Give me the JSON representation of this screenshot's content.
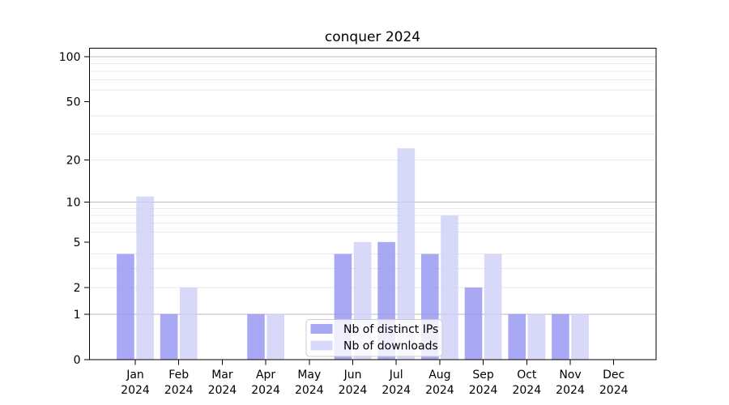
{
  "chart_data": {
    "type": "bar",
    "title": "conquer 2024",
    "categories": [
      "Jan 2024",
      "Feb 2024",
      "Mar 2024",
      "Apr 2024",
      "May 2024",
      "Jun 2024",
      "Jul 2024",
      "Aug 2024",
      "Sep 2024",
      "Oct 2024",
      "Nov 2024",
      "Dec 2024"
    ],
    "series": [
      {
        "name": "Nb of distinct IPs",
        "values": [
          4,
          1,
          0,
          1,
          0,
          4,
          5,
          4,
          2,
          1,
          1,
          0
        ],
        "color": "rgba(146,146,242,0.8)"
      },
      {
        "name": "Nb of downloads",
        "values": [
          11,
          2,
          0,
          1,
          0,
          5,
          24,
          8,
          4,
          1,
          1,
          0
        ],
        "color": "rgba(206,206,248,0.8)"
      }
    ],
    "yscale": "log1p",
    "ylim": [
      0,
      113
    ],
    "y_ticks": [
      0,
      1,
      2,
      5,
      10,
      20,
      50,
      100
    ],
    "y_major_gridlines": [
      1,
      10,
      100
    ],
    "y_minor_gridlines": [
      2,
      3,
      4,
      6,
      7,
      8,
      9,
      20,
      30,
      40,
      60,
      70,
      80,
      90
    ],
    "grid": true,
    "legend_position": "lower-center",
    "colors": {
      "axis": "#000000",
      "major_grid": "#b9b9b9",
      "minor_grid": "#eaeaea",
      "legend_border": "#cccccc",
      "legend_bg": "rgba(255,255,255,0.8)"
    }
  }
}
